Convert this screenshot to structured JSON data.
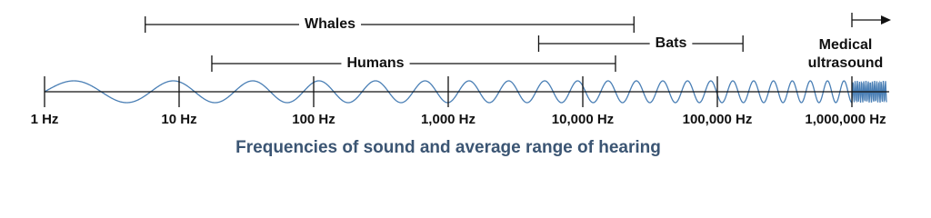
{
  "axis": {
    "ticks": [
      {
        "value": 1,
        "label": "1 Hz"
      },
      {
        "value": 10,
        "label": "10 Hz"
      },
      {
        "value": 100,
        "label": "100 Hz"
      },
      {
        "value": 1000,
        "label": "1,000 Hz"
      },
      {
        "value": 10000,
        "label": "10,000 Hz"
      },
      {
        "value": 100000,
        "label": "100,000 Hz"
      },
      {
        "value": 1000000,
        "label": "1,000,000 Hz"
      }
    ]
  },
  "ranges": [
    {
      "label": "Whales",
      "from": 5.6,
      "to": 24000
    },
    {
      "label": "Bats",
      "from": 4700,
      "to": 155000
    },
    {
      "label": "Humans",
      "from": 17.5,
      "to": 17500
    }
  ],
  "medical": {
    "lines": [
      "Medical",
      "ultrasound"
    ],
    "from": 1000000
  },
  "caption": "Frequencies of sound and average range of hearing"
}
